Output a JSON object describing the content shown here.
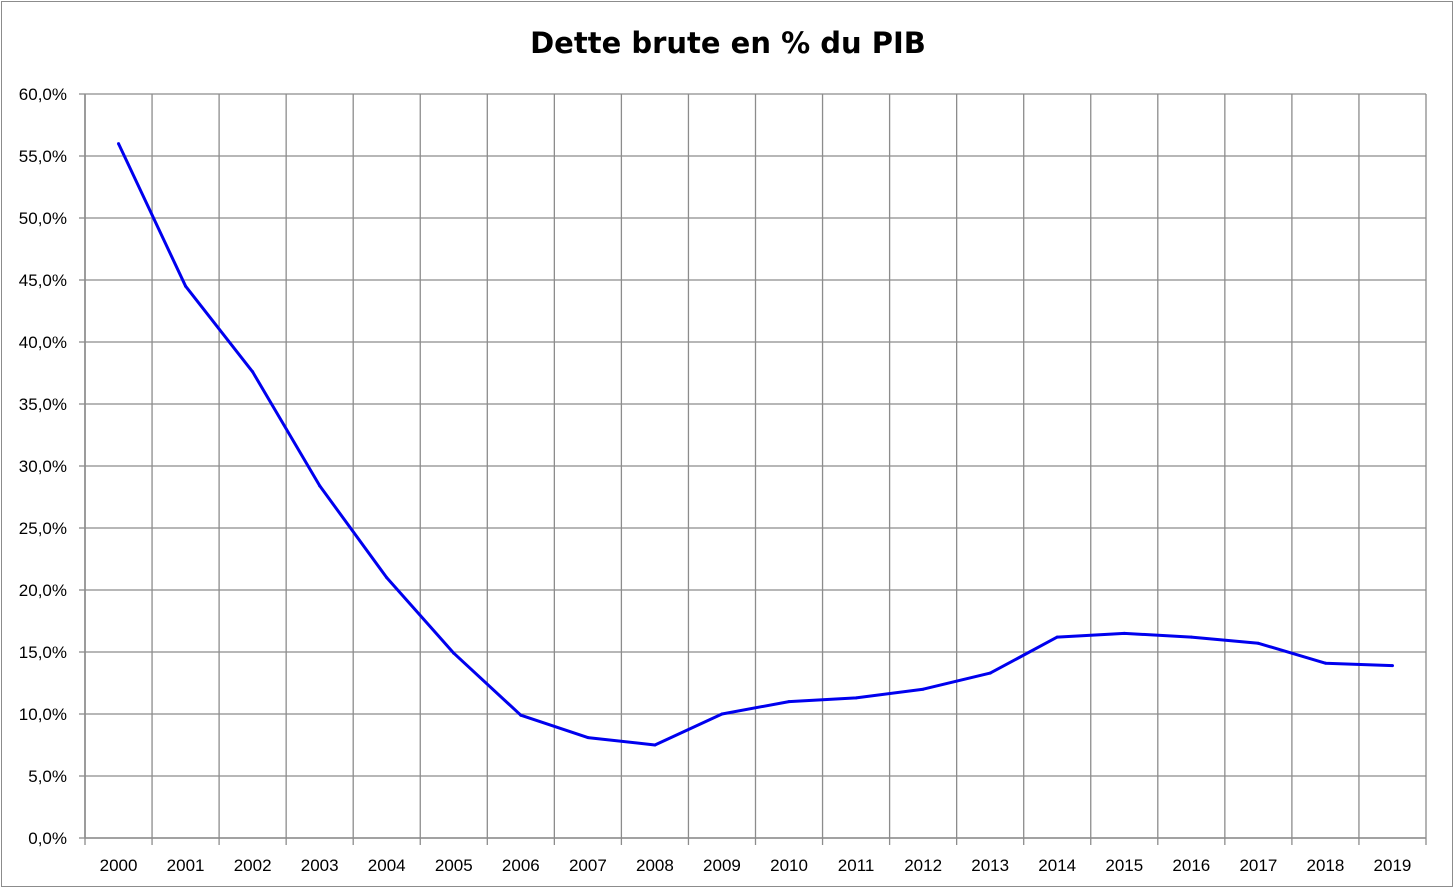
{
  "chart_data": {
    "type": "line",
    "title": "Dette brute en % du PIB",
    "xlabel": "",
    "ylabel": "",
    "categories": [
      "2000",
      "2001",
      "2002",
      "2003",
      "2004",
      "2005",
      "2006",
      "2007",
      "2008",
      "2009",
      "2010",
      "2011",
      "2012",
      "2013",
      "2014",
      "2015",
      "2016",
      "2017",
      "2018",
      "2019"
    ],
    "series": [
      {
        "values": [
          56.0,
          44.5,
          37.6,
          28.4,
          21.0,
          14.9,
          9.9,
          8.1,
          7.5,
          10.0,
          11.0,
          11.3,
          12.0,
          13.3,
          16.2,
          16.5,
          16.2,
          15.7,
          14.1,
          13.9
        ]
      }
    ],
    "ylim": [
      0,
      60
    ],
    "ytick_values": [
      0,
      5,
      10,
      15,
      20,
      25,
      30,
      35,
      40,
      45,
      50,
      55,
      60
    ],
    "ytick_labels": [
      "0,0%",
      "5,0%",
      "10,0%",
      "15,0%",
      "20,0%",
      "25,0%",
      "30,0%",
      "35,0%",
      "40,0%",
      "45,0%",
      "50,0%",
      "55,0%",
      "60,0%"
    ],
    "grid": true,
    "legend": "none",
    "colors": {
      "line": "#0000ee",
      "grid": "#8c8c8c",
      "axis": "#8c8c8c"
    }
  }
}
